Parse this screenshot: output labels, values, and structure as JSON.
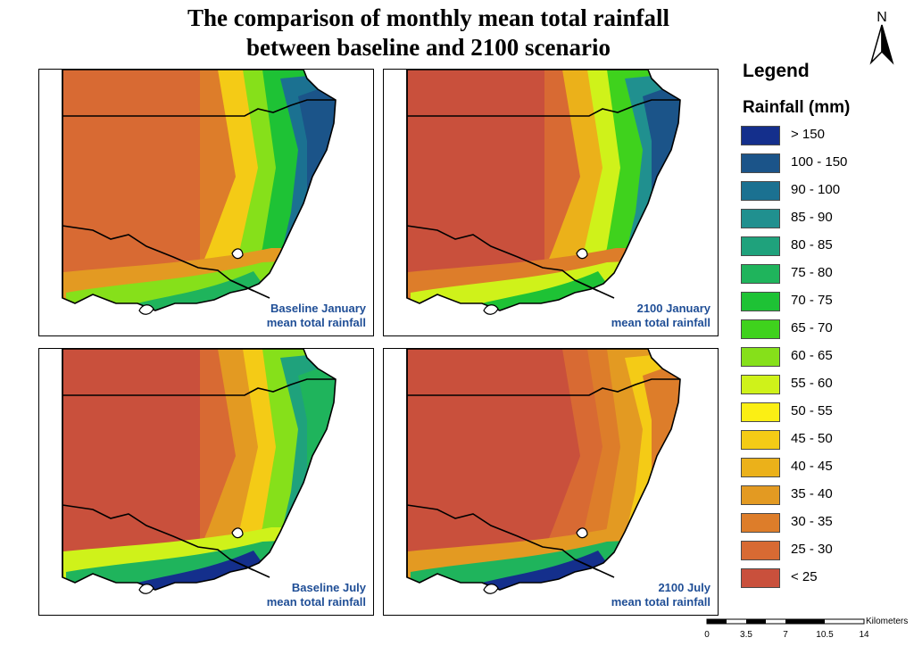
{
  "title_line1": "The comparison of monthly mean total rainfall",
  "title_line2": "between baseline and 2100 scenario",
  "north_label": "N",
  "legend": {
    "title": "Legend",
    "subtitle": "Rainfall (mm)",
    "classes": [
      {
        "label": "> 150",
        "color": "#142f8c"
      },
      {
        "label": "100 - 150",
        "color": "#1b5489"
      },
      {
        "label": "90 - 100",
        "color": "#1b7191"
      },
      {
        "label": "85 - 90",
        "color": "#20908f"
      },
      {
        "label": "80 - 85",
        "color": "#1fa27c"
      },
      {
        "label": "75 - 80",
        "color": "#1fb45c"
      },
      {
        "label": "70 - 75",
        "color": "#1ec235"
      },
      {
        "label": "65 - 70",
        "color": "#3fd21d"
      },
      {
        "label": "60 - 65",
        "color": "#86e01a"
      },
      {
        "label": "55 - 60",
        "color": "#cff21a"
      },
      {
        "label": "50 - 55",
        "color": "#fbef14"
      },
      {
        "label": "45 - 50",
        "color": "#f4cb16"
      },
      {
        "label": "40 - 45",
        "color": "#ebb11a"
      },
      {
        "label": "35 - 40",
        "color": "#e39a22"
      },
      {
        "label": "30 - 35",
        "color": "#dd7d2a"
      },
      {
        "label": "25 - 30",
        "color": "#d86a33"
      },
      {
        "label": "< 25",
        "color": "#c9503c"
      }
    ]
  },
  "panels": [
    {
      "caption_line1": "Baseline January",
      "caption_line2": "mean total rainfall",
      "base": "#dd7d2a",
      "sea": "#d86a33",
      "w": [
        "#f4cb16",
        "#86e01a",
        "#1ec235",
        "#1b7191",
        "#1b5489"
      ],
      "south": [
        "#e39a22",
        "#86e01a",
        "#1fb45c"
      ]
    },
    {
      "caption_line1": "2100 January",
      "caption_line2": "mean total rainfall",
      "base": "#d86a33",
      "sea": "#c9503c",
      "w": [
        "#ebb11a",
        "#cff21a",
        "#3fd21d",
        "#20908f",
        "#1b5489"
      ],
      "south": [
        "#dd7d2a",
        "#cff21a",
        "#1ec235"
      ]
    },
    {
      "caption_line1": "Baseline July",
      "caption_line2": "mean total rainfall",
      "base": "#d86a33",
      "sea": "#c9503c",
      "w": [
        "#e39a22",
        "#f4cb16",
        "#86e01a",
        "#1fa27c",
        "#1fb45c"
      ],
      "south": [
        "#cff21a",
        "#1fb45c",
        "#142f8c"
      ]
    },
    {
      "caption_line1": "2100 July",
      "caption_line2": "mean total rainfall",
      "base": "#c9503c",
      "sea": "#c9503c",
      "w": [
        "#d86a33",
        "#dd7d2a",
        "#e39a22",
        "#f4cb16",
        "#dd7d2a"
      ],
      "south": [
        "#e39a22",
        "#1fb45c",
        "#142f8c"
      ]
    }
  ],
  "scale": {
    "ticks": [
      "0",
      "3.5",
      "7",
      "10.5",
      "14"
    ],
    "unit": "Kilometers"
  }
}
